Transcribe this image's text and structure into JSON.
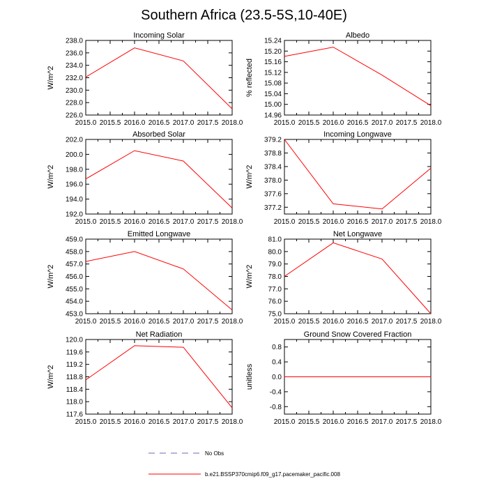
{
  "figure": {
    "title": "Southern Africa (23.5-5S,10-40E)"
  },
  "legend": {
    "entries": [
      {
        "label": "No Obs",
        "style": "dashed",
        "color": "#6b6bb3"
      },
      {
        "label": "b.e21.BSSP370cmip6.f09_g17.pacemaker_pacific.008",
        "style": "solid",
        "color": "#ff0000"
      }
    ]
  },
  "chart_data": [
    {
      "type": "line",
      "title": "Incoming Solar",
      "ylabel": "W/m^2",
      "x": [
        2015,
        2016,
        2017,
        2018
      ],
      "xlim": [
        2015,
        2018
      ],
      "xticks": [
        "2015.0",
        "2015.5",
        "2016.0",
        "2016.5",
        "2017.0",
        "2017.5",
        "2018.0"
      ],
      "ylim": [
        226,
        238
      ],
      "yticks": [
        "226.0",
        "228.0",
        "230.0",
        "232.0",
        "234.0",
        "236.0",
        "238.0"
      ],
      "series": [
        {
          "values": [
            232.1,
            236.8,
            234.7,
            227.0
          ],
          "color": "#ff0000"
        }
      ]
    },
    {
      "type": "line",
      "title": "Albedo",
      "ylabel": "% reflected",
      "x": [
        2015,
        2016,
        2017,
        2018
      ],
      "xlim": [
        2015,
        2018
      ],
      "xticks": [
        "2015.0",
        "2015.5",
        "2016.0",
        "2016.5",
        "2017.0",
        "2017.5",
        "2018.0"
      ],
      "ylim": [
        14.96,
        15.24
      ],
      "yticks": [
        "14.96",
        "15.00",
        "15.04",
        "15.08",
        "15.12",
        "15.16",
        "15.20",
        "15.24"
      ],
      "series": [
        {
          "values": [
            15.18,
            15.215,
            15.11,
            14.995
          ],
          "color": "#ff0000"
        }
      ]
    },
    {
      "type": "line",
      "title": "Absorbed Solar",
      "ylabel": "W/m^2",
      "x": [
        2015,
        2016,
        2017,
        2018
      ],
      "xlim": [
        2015,
        2018
      ],
      "xticks": [
        "2015.0",
        "2015.5",
        "2016.0",
        "2016.5",
        "2017.0",
        "2017.5",
        "2018.0"
      ],
      "ylim": [
        192,
        202
      ],
      "yticks": [
        "192.0",
        "194.0",
        "196.0",
        "198.0",
        "200.0",
        "202.0"
      ],
      "series": [
        {
          "values": [
            196.7,
            200.5,
            199.1,
            192.8
          ],
          "color": "#ff0000"
        }
      ]
    },
    {
      "type": "line",
      "title": "Incoming Longwave",
      "ylabel": "W/m^2",
      "x": [
        2015,
        2016,
        2017,
        2018
      ],
      "xlim": [
        2015,
        2018
      ],
      "xticks": [
        "2015.0",
        "2015.5",
        "2016.0",
        "2016.5",
        "2017.0",
        "2017.5",
        "2018.0"
      ],
      "ylim": [
        377.0,
        379.2
      ],
      "yticks": [
        "377.2",
        "377.6",
        "378.0",
        "378.4",
        "378.8",
        "379.2"
      ],
      "series": [
        {
          "values": [
            379.2,
            377.3,
            377.15,
            378.35
          ],
          "color": "#ff0000"
        }
      ]
    },
    {
      "type": "line",
      "title": "Emitted Longwave",
      "ylabel": "W/m^2",
      "x": [
        2015,
        2016,
        2017,
        2018
      ],
      "xlim": [
        2015,
        2018
      ],
      "xticks": [
        "2015.0",
        "2015.5",
        "2016.0",
        "2016.5",
        "2017.0",
        "2017.5",
        "2018.0"
      ],
      "ylim": [
        453,
        459
      ],
      "yticks": [
        "453.0",
        "454.0",
        "455.0",
        "456.0",
        "457.0",
        "458.0",
        "459.0"
      ],
      "series": [
        {
          "values": [
            457.2,
            458.0,
            456.6,
            453.3
          ],
          "color": "#ff0000"
        }
      ]
    },
    {
      "type": "line",
      "title": "Net Longwave",
      "ylabel": "W/m^2",
      "x": [
        2015,
        2016,
        2017,
        2018
      ],
      "xlim": [
        2015,
        2018
      ],
      "xticks": [
        "2015.0",
        "2015.5",
        "2016.0",
        "2016.5",
        "2017.0",
        "2017.5",
        "2018.0"
      ],
      "ylim": [
        75,
        81
      ],
      "yticks": [
        "75.0",
        "76.0",
        "77.0",
        "78.0",
        "79.0",
        "80.0",
        "81.0"
      ],
      "series": [
        {
          "values": [
            78.0,
            80.7,
            79.4,
            75.0
          ],
          "color": "#ff0000"
        }
      ]
    },
    {
      "type": "line",
      "title": "Net Radiation",
      "ylabel": "W/m^2",
      "x": [
        2015,
        2016,
        2017,
        2018
      ],
      "xlim": [
        2015,
        2018
      ],
      "xticks": [
        "2015.0",
        "2015.5",
        "2016.0",
        "2016.5",
        "2017.0",
        "2017.5",
        "2018.0"
      ],
      "ylim": [
        117.6,
        120.0
      ],
      "yticks": [
        "117.6",
        "118.0",
        "118.4",
        "118.8",
        "119.2",
        "119.6",
        "120.0"
      ],
      "series": [
        {
          "values": [
            118.7,
            119.8,
            119.75,
            117.8
          ],
          "color": "#ff0000"
        }
      ]
    },
    {
      "type": "line",
      "title": "Ground Snow Covered Fraction",
      "ylabel": "unitless",
      "x": [
        2015,
        2016,
        2017,
        2018
      ],
      "xlim": [
        2015,
        2018
      ],
      "xticks": [
        "2015.0",
        "2015.5",
        "2016.0",
        "2016.5",
        "2017.0",
        "2017.5",
        "2018.0"
      ],
      "ylim": [
        -1.0,
        1.0
      ],
      "yticks": [
        "-0.8",
        "-0.4",
        "0.0",
        "0.4",
        "0.8"
      ],
      "series": [
        {
          "values": [
            0.0,
            0.0,
            0.0,
            0.0
          ],
          "color": "#ff0000"
        }
      ]
    }
  ]
}
